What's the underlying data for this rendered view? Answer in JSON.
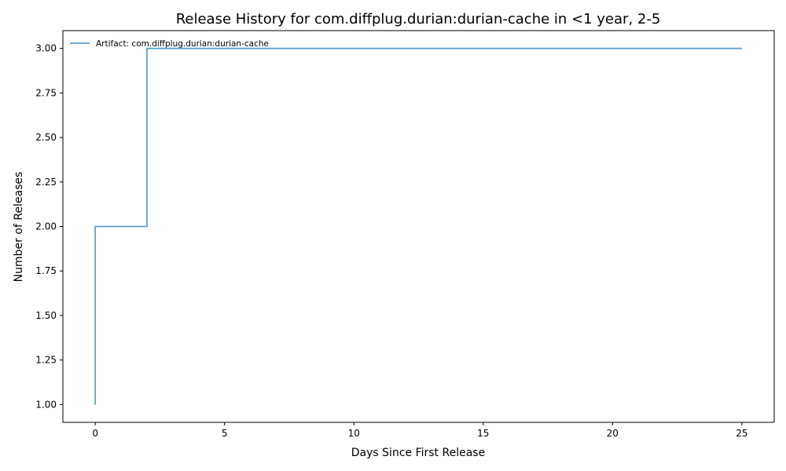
{
  "chart_data": {
    "type": "line",
    "step": "post",
    "title": "Release History for com.diffplug.durian:durian-cache in <1 year, 2-5",
    "xlabel": "Days Since First Release",
    "ylabel": "Number of Releases",
    "xlim": [
      -1.25,
      26.25
    ],
    "ylim": [
      0.9,
      3.1
    ],
    "xticks": [
      0,
      5,
      10,
      15,
      20,
      25
    ],
    "xtick_labels": [
      "0",
      "5",
      "10",
      "15",
      "20",
      "25"
    ],
    "yticks": [
      1.0,
      1.25,
      1.5,
      1.75,
      2.0,
      2.25,
      2.5,
      2.75,
      3.0
    ],
    "ytick_labels": [
      "1.00",
      "1.25",
      "1.50",
      "1.75",
      "2.00",
      "2.25",
      "2.50",
      "2.75",
      "3.00"
    ],
    "grid": false,
    "legend_position": "top-left",
    "series": [
      {
        "name": "Artifact: com.diffplug.durian:durian-cache",
        "color": "#5ba3c9",
        "x": [
          0,
          0,
          2,
          25
        ],
        "y": [
          1,
          2,
          3,
          3
        ]
      }
    ]
  }
}
